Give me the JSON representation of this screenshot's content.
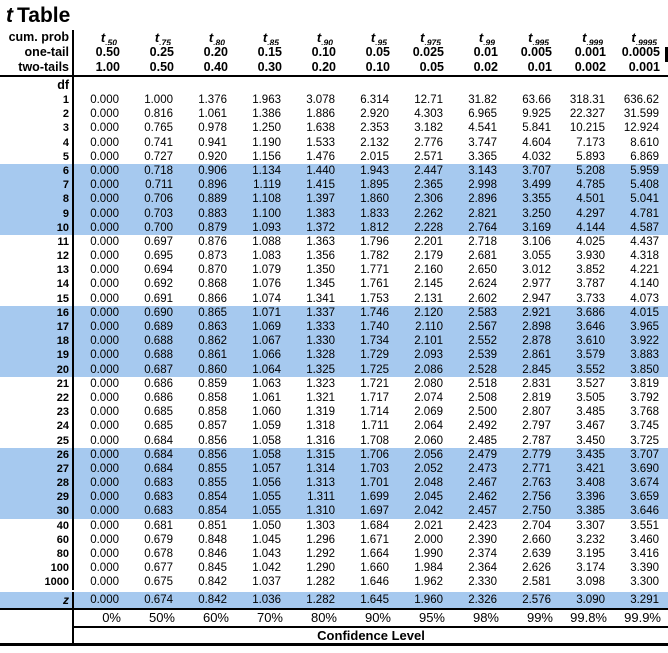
{
  "title": {
    "t_letter": "t",
    "rest": "Table"
  },
  "header": {
    "cum_prob_label": "cum. prob",
    "one_tail_label": "one-tail",
    "two_tails_label": "two-tails",
    "df_label": "df",
    "t_letter": "t",
    "t_subs": [
      ".50",
      ".75",
      ".80",
      ".85",
      ".90",
      ".95",
      ".975",
      ".99",
      ".995",
      ".999",
      ".9995"
    ],
    "one_tail_values": [
      "0.50",
      "0.25",
      "0.20",
      "0.15",
      "0.10",
      "0.05",
      "0.025",
      "0.01",
      "0.005",
      "0.001",
      "0.0005"
    ],
    "two_tails_values": [
      "1.00",
      "0.50",
      "0.40",
      "0.30",
      "0.20",
      "0.10",
      "0.05",
      "0.02",
      "0.01",
      "0.002",
      "0.001"
    ]
  },
  "body": {
    "rows": [
      {
        "df": "1",
        "highlight": false,
        "z": false,
        "values": [
          "0.000",
          "1.000",
          "1.376",
          "1.963",
          "3.078",
          "6.314",
          "12.71",
          "31.82",
          "63.66",
          "318.31",
          "636.62"
        ]
      },
      {
        "df": "2",
        "highlight": false,
        "z": false,
        "values": [
          "0.000",
          "0.816",
          "1.061",
          "1.386",
          "1.886",
          "2.920",
          "4.303",
          "6.965",
          "9.925",
          "22.327",
          "31.599"
        ]
      },
      {
        "df": "3",
        "highlight": false,
        "z": false,
        "values": [
          "0.000",
          "0.765",
          "0.978",
          "1.250",
          "1.638",
          "2.353",
          "3.182",
          "4.541",
          "5.841",
          "10.215",
          "12.924"
        ]
      },
      {
        "df": "4",
        "highlight": false,
        "z": false,
        "values": [
          "0.000",
          "0.741",
          "0.941",
          "1.190",
          "1.533",
          "2.132",
          "2.776",
          "3.747",
          "4.604",
          "7.173",
          "8.610"
        ]
      },
      {
        "df": "5",
        "highlight": false,
        "z": false,
        "values": [
          "0.000",
          "0.727",
          "0.920",
          "1.156",
          "1.476",
          "2.015",
          "2.571",
          "3.365",
          "4.032",
          "5.893",
          "6.869"
        ]
      },
      {
        "df": "6",
        "highlight": true,
        "z": false,
        "values": [
          "0.000",
          "0.718",
          "0.906",
          "1.134",
          "1.440",
          "1.943",
          "2.447",
          "3.143",
          "3.707",
          "5.208",
          "5.959"
        ]
      },
      {
        "df": "7",
        "highlight": true,
        "z": false,
        "values": [
          "0.000",
          "0.711",
          "0.896",
          "1.119",
          "1.415",
          "1.895",
          "2.365",
          "2.998",
          "3.499",
          "4.785",
          "5.408"
        ]
      },
      {
        "df": "8",
        "highlight": true,
        "z": false,
        "values": [
          "0.000",
          "0.706",
          "0.889",
          "1.108",
          "1.397",
          "1.860",
          "2.306",
          "2.896",
          "3.355",
          "4.501",
          "5.041"
        ]
      },
      {
        "df": "9",
        "highlight": true,
        "z": false,
        "values": [
          "0.000",
          "0.703",
          "0.883",
          "1.100",
          "1.383",
          "1.833",
          "2.262",
          "2.821",
          "3.250",
          "4.297",
          "4.781"
        ]
      },
      {
        "df": "10",
        "highlight": true,
        "z": false,
        "values": [
          "0.000",
          "0.700",
          "0.879",
          "1.093",
          "1.372",
          "1.812",
          "2.228",
          "2.764",
          "3.169",
          "4.144",
          "4.587"
        ]
      },
      {
        "df": "11",
        "highlight": false,
        "z": false,
        "values": [
          "0.000",
          "0.697",
          "0.876",
          "1.088",
          "1.363",
          "1.796",
          "2.201",
          "2.718",
          "3.106",
          "4.025",
          "4.437"
        ]
      },
      {
        "df": "12",
        "highlight": false,
        "z": false,
        "values": [
          "0.000",
          "0.695",
          "0.873",
          "1.083",
          "1.356",
          "1.782",
          "2.179",
          "2.681",
          "3.055",
          "3.930",
          "4.318"
        ]
      },
      {
        "df": "13",
        "highlight": false,
        "z": false,
        "values": [
          "0.000",
          "0.694",
          "0.870",
          "1.079",
          "1.350",
          "1.771",
          "2.160",
          "2.650",
          "3.012",
          "3.852",
          "4.221"
        ]
      },
      {
        "df": "14",
        "highlight": false,
        "z": false,
        "values": [
          "0.000",
          "0.692",
          "0.868",
          "1.076",
          "1.345",
          "1.761",
          "2.145",
          "2.624",
          "2.977",
          "3.787",
          "4.140"
        ]
      },
      {
        "df": "15",
        "highlight": false,
        "z": false,
        "values": [
          "0.000",
          "0.691",
          "0.866",
          "1.074",
          "1.341",
          "1.753",
          "2.131",
          "2.602",
          "2.947",
          "3.733",
          "4.073"
        ]
      },
      {
        "df": "16",
        "highlight": true,
        "z": false,
        "values": [
          "0.000",
          "0.690",
          "0.865",
          "1.071",
          "1.337",
          "1.746",
          "2.120",
          "2.583",
          "2.921",
          "3.686",
          "4.015"
        ]
      },
      {
        "df": "17",
        "highlight": true,
        "z": false,
        "values": [
          "0.000",
          "0.689",
          "0.863",
          "1.069",
          "1.333",
          "1.740",
          "2.110",
          "2.567",
          "2.898",
          "3.646",
          "3.965"
        ]
      },
      {
        "df": "18",
        "highlight": true,
        "z": false,
        "values": [
          "0.000",
          "0.688",
          "0.862",
          "1.067",
          "1.330",
          "1.734",
          "2.101",
          "2.552",
          "2.878",
          "3.610",
          "3.922"
        ]
      },
      {
        "df": "19",
        "highlight": true,
        "z": false,
        "values": [
          "0.000",
          "0.688",
          "0.861",
          "1.066",
          "1.328",
          "1.729",
          "2.093",
          "2.539",
          "2.861",
          "3.579",
          "3.883"
        ]
      },
      {
        "df": "20",
        "highlight": true,
        "z": false,
        "values": [
          "0.000",
          "0.687",
          "0.860",
          "1.064",
          "1.325",
          "1.725",
          "2.086",
          "2.528",
          "2.845",
          "3.552",
          "3.850"
        ]
      },
      {
        "df": "21",
        "highlight": false,
        "z": false,
        "values": [
          "0.000",
          "0.686",
          "0.859",
          "1.063",
          "1.323",
          "1.721",
          "2.080",
          "2.518",
          "2.831",
          "3.527",
          "3.819"
        ]
      },
      {
        "df": "22",
        "highlight": false,
        "z": false,
        "values": [
          "0.000",
          "0.686",
          "0.858",
          "1.061",
          "1.321",
          "1.717",
          "2.074",
          "2.508",
          "2.819",
          "3.505",
          "3.792"
        ]
      },
      {
        "df": "23",
        "highlight": false,
        "z": false,
        "values": [
          "0.000",
          "0.685",
          "0.858",
          "1.060",
          "1.319",
          "1.714",
          "2.069",
          "2.500",
          "2.807",
          "3.485",
          "3.768"
        ]
      },
      {
        "df": "24",
        "highlight": false,
        "z": false,
        "values": [
          "0.000",
          "0.685",
          "0.857",
          "1.059",
          "1.318",
          "1.711",
          "2.064",
          "2.492",
          "2.797",
          "3.467",
          "3.745"
        ]
      },
      {
        "df": "25",
        "highlight": false,
        "z": false,
        "values": [
          "0.000",
          "0.684",
          "0.856",
          "1.058",
          "1.316",
          "1.708",
          "2.060",
          "2.485",
          "2.787",
          "3.450",
          "3.725"
        ]
      },
      {
        "df": "26",
        "highlight": true,
        "z": false,
        "values": [
          "0.000",
          "0.684",
          "0.856",
          "1.058",
          "1.315",
          "1.706",
          "2.056",
          "2.479",
          "2.779",
          "3.435",
          "3.707"
        ]
      },
      {
        "df": "27",
        "highlight": true,
        "z": false,
        "values": [
          "0.000",
          "0.684",
          "0.855",
          "1.057",
          "1.314",
          "1.703",
          "2.052",
          "2.473",
          "2.771",
          "3.421",
          "3.690"
        ]
      },
      {
        "df": "28",
        "highlight": true,
        "z": false,
        "values": [
          "0.000",
          "0.683",
          "0.855",
          "1.056",
          "1.313",
          "1.701",
          "2.048",
          "2.467",
          "2.763",
          "3.408",
          "3.674"
        ]
      },
      {
        "df": "29",
        "highlight": true,
        "z": false,
        "values": [
          "0.000",
          "0.683",
          "0.854",
          "1.055",
          "1.311",
          "1.699",
          "2.045",
          "2.462",
          "2.756",
          "3.396",
          "3.659"
        ]
      },
      {
        "df": "30",
        "highlight": true,
        "z": false,
        "values": [
          "0.000",
          "0.683",
          "0.854",
          "1.055",
          "1.310",
          "1.697",
          "2.042",
          "2.457",
          "2.750",
          "3.385",
          "3.646"
        ]
      },
      {
        "df": "40",
        "highlight": false,
        "z": false,
        "values": [
          "0.000",
          "0.681",
          "0.851",
          "1.050",
          "1.303",
          "1.684",
          "2.021",
          "2.423",
          "2.704",
          "3.307",
          "3.551"
        ]
      },
      {
        "df": "60",
        "highlight": false,
        "z": false,
        "values": [
          "0.000",
          "0.679",
          "0.848",
          "1.045",
          "1.296",
          "1.671",
          "2.000",
          "2.390",
          "2.660",
          "3.232",
          "3.460"
        ]
      },
      {
        "df": "80",
        "highlight": false,
        "z": false,
        "values": [
          "0.000",
          "0.678",
          "0.846",
          "1.043",
          "1.292",
          "1.664",
          "1.990",
          "2.374",
          "2.639",
          "3.195",
          "3.416"
        ]
      },
      {
        "df": "100",
        "highlight": false,
        "z": false,
        "values": [
          "0.000",
          "0.677",
          "0.845",
          "1.042",
          "1.290",
          "1.660",
          "1.984",
          "2.364",
          "2.626",
          "3.174",
          "3.390"
        ]
      },
      {
        "df": "1000",
        "highlight": false,
        "z": false,
        "values": [
          "0.000",
          "0.675",
          "0.842",
          "1.037",
          "1.282",
          "1.646",
          "1.962",
          "2.330",
          "2.581",
          "3.098",
          "3.300"
        ]
      },
      {
        "df": "z",
        "highlight": true,
        "z": true,
        "values": [
          "0.000",
          "0.674",
          "0.842",
          "1.036",
          "1.282",
          "1.645",
          "1.960",
          "2.326",
          "2.576",
          "3.090",
          "3.291"
        ]
      }
    ]
  },
  "footer": {
    "percentages": [
      "0%",
      "50%",
      "60%",
      "70%",
      "80%",
      "90%",
      "95%",
      "98%",
      "99%",
      "99.8%",
      "99.9%"
    ],
    "confidence_label": "Confidence Level"
  },
  "colors": {
    "highlight": "#a6c9ef",
    "line": "#000000"
  }
}
